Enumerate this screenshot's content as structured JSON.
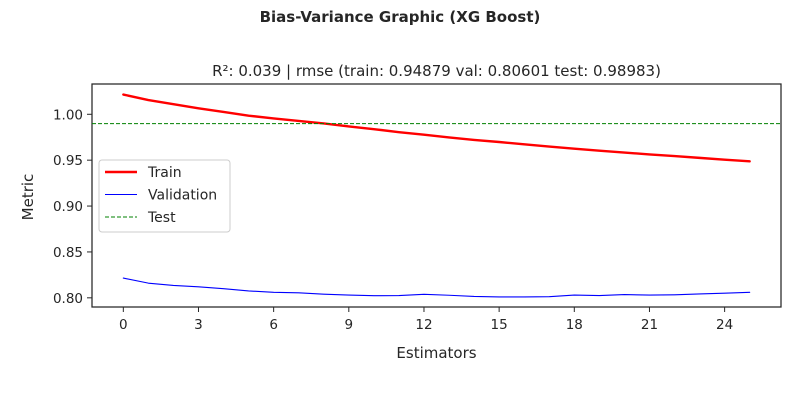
{
  "figure": {
    "suptitle": "Bias-Variance Graphic (XG Boost)"
  },
  "chart_data": {
    "type": "line",
    "title": "R²: 0.039 | rmse (train: 0.94879  val: 0.80601  test: 0.98983)",
    "xlabel": "Estimators",
    "ylabel": "Metric",
    "xlim": [
      -1.25,
      26.25
    ],
    "ylim": [
      0.79,
      1.033
    ],
    "xticks": [
      0,
      3,
      6,
      9,
      12,
      15,
      18,
      21,
      24
    ],
    "yticks": [
      0.8,
      0.85,
      0.9,
      0.95,
      1.0
    ],
    "ytick_labels": [
      "0.80",
      "0.85",
      "0.90",
      "0.95",
      "1.00"
    ],
    "grid": false,
    "legend_position": "center-left",
    "x": [
      0,
      1,
      2,
      3,
      4,
      5,
      6,
      7,
      8,
      9,
      10,
      11,
      12,
      13,
      14,
      15,
      16,
      17,
      18,
      19,
      20,
      21,
      22,
      23,
      24,
      25
    ],
    "series": [
      {
        "name": "Train",
        "color": "#ff0000",
        "style": "solid",
        "width": "thick",
        "values": [
          1.0215,
          1.0155,
          1.011,
          1.0065,
          1.0025,
          0.9985,
          0.9955,
          0.9928,
          0.99,
          0.9868,
          0.9838,
          0.9805,
          0.9778,
          0.9748,
          0.972,
          0.9698,
          0.9673,
          0.9648,
          0.9625,
          0.9603,
          0.9583,
          0.9563,
          0.9545,
          0.9525,
          0.9505,
          0.9488
        ]
      },
      {
        "name": "Validation",
        "color": "#0000ff",
        "style": "solid",
        "width": "thin",
        "values": [
          0.8215,
          0.816,
          0.8135,
          0.812,
          0.81,
          0.8075,
          0.806,
          0.8055,
          0.804,
          0.803,
          0.8023,
          0.8025,
          0.8038,
          0.8028,
          0.8015,
          0.801,
          0.801,
          0.8012,
          0.803,
          0.8025,
          0.8035,
          0.803,
          0.8033,
          0.8042,
          0.805,
          0.806
        ]
      },
      {
        "name": "Test",
        "color": "#008000",
        "style": "dashed",
        "width": "thin",
        "hline": 0.98983
      }
    ]
  }
}
